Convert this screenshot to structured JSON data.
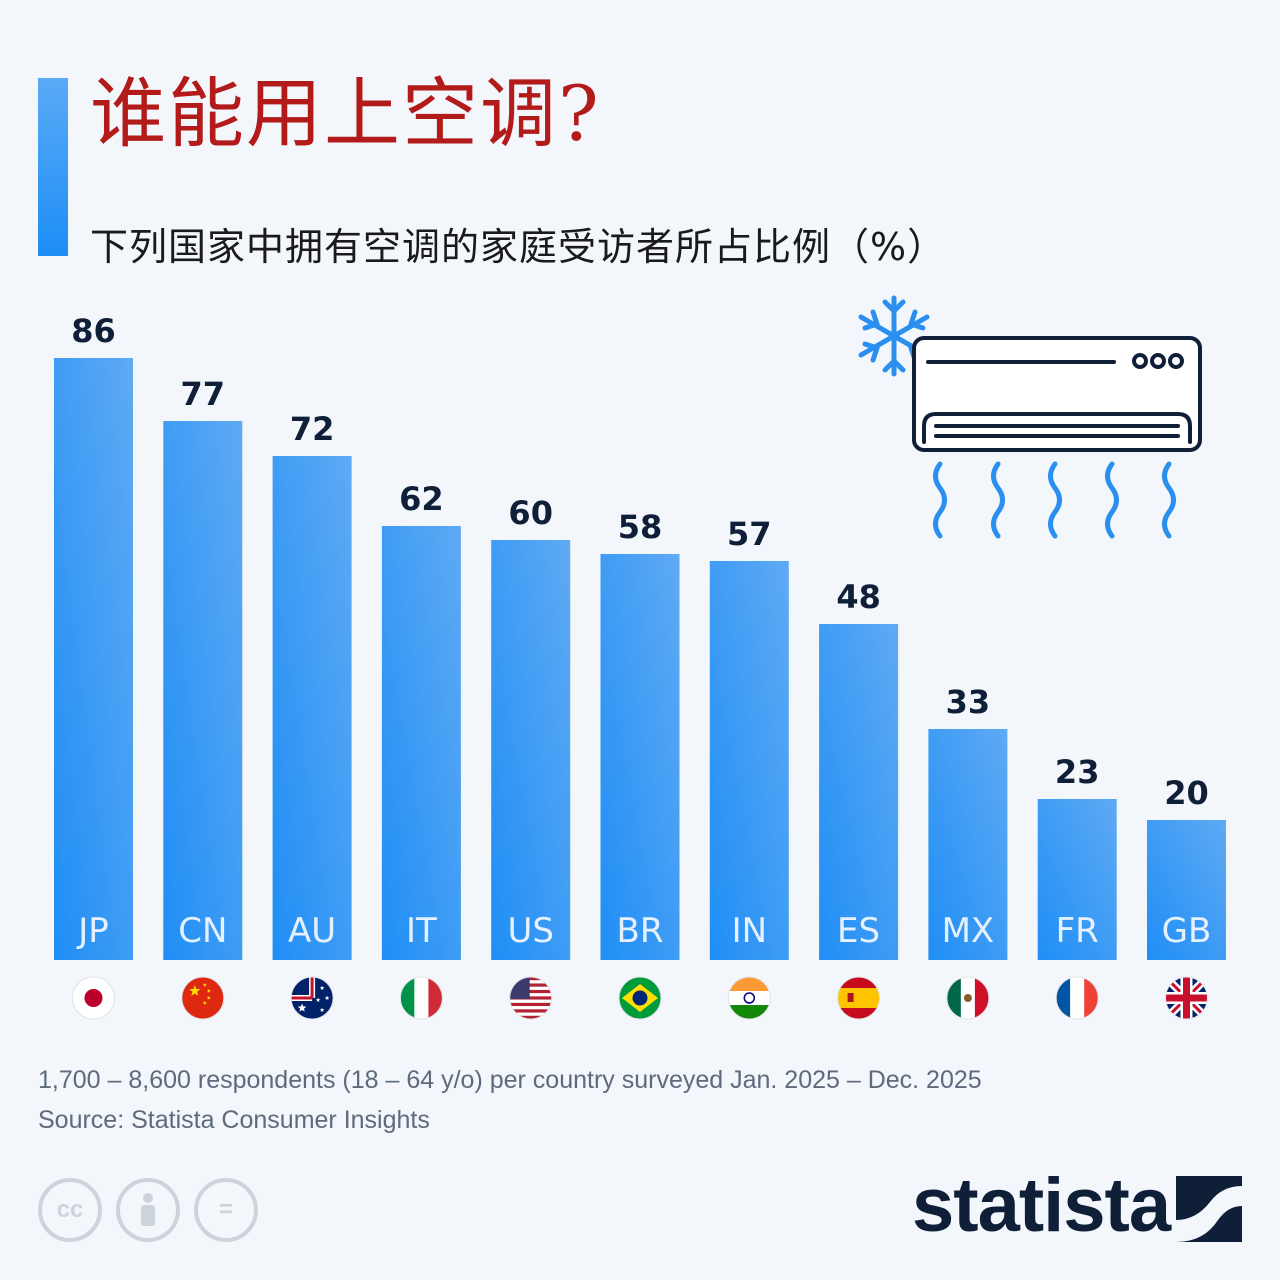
{
  "header": {
    "title": "谁能用上空调?",
    "subtitle": "下列国家中拥有空调的家庭受访者所占比例（%）"
  },
  "chart_data": {
    "type": "bar",
    "categories": [
      "JP",
      "CN",
      "AU",
      "IT",
      "US",
      "BR",
      "IN",
      "ES",
      "MX",
      "FR",
      "GB"
    ],
    "values": [
      86,
      77,
      72,
      62,
      60,
      58,
      57,
      48,
      33,
      23,
      20
    ],
    "ylim": [
      0,
      100
    ],
    "grid": false,
    "legend": "none",
    "bar_color_top": "#5faaf4",
    "bar_color_bottom": "#1f8ef5",
    "flags": [
      "flag-japan-icon",
      "flag-china-icon",
      "flag-australia-icon",
      "flag-italy-icon",
      "flag-usa-icon",
      "flag-brazil-icon",
      "flag-india-icon",
      "flag-spain-icon",
      "flag-mexico-icon",
      "flag-france-icon",
      "flag-uk-icon"
    ]
  },
  "footer": {
    "note": "1,700 – 8,600 respondents (18 – 64 y/o) per country surveyed Jan. 2025 – Dec. 2025",
    "source": "Source: Statista Consumer Insights",
    "license_icons": [
      "cc-icon",
      "attribution-icon",
      "no-derivatives-icon"
    ],
    "cc_text": "cc",
    "nd_text": "="
  },
  "brand": {
    "name": "statista"
  }
}
